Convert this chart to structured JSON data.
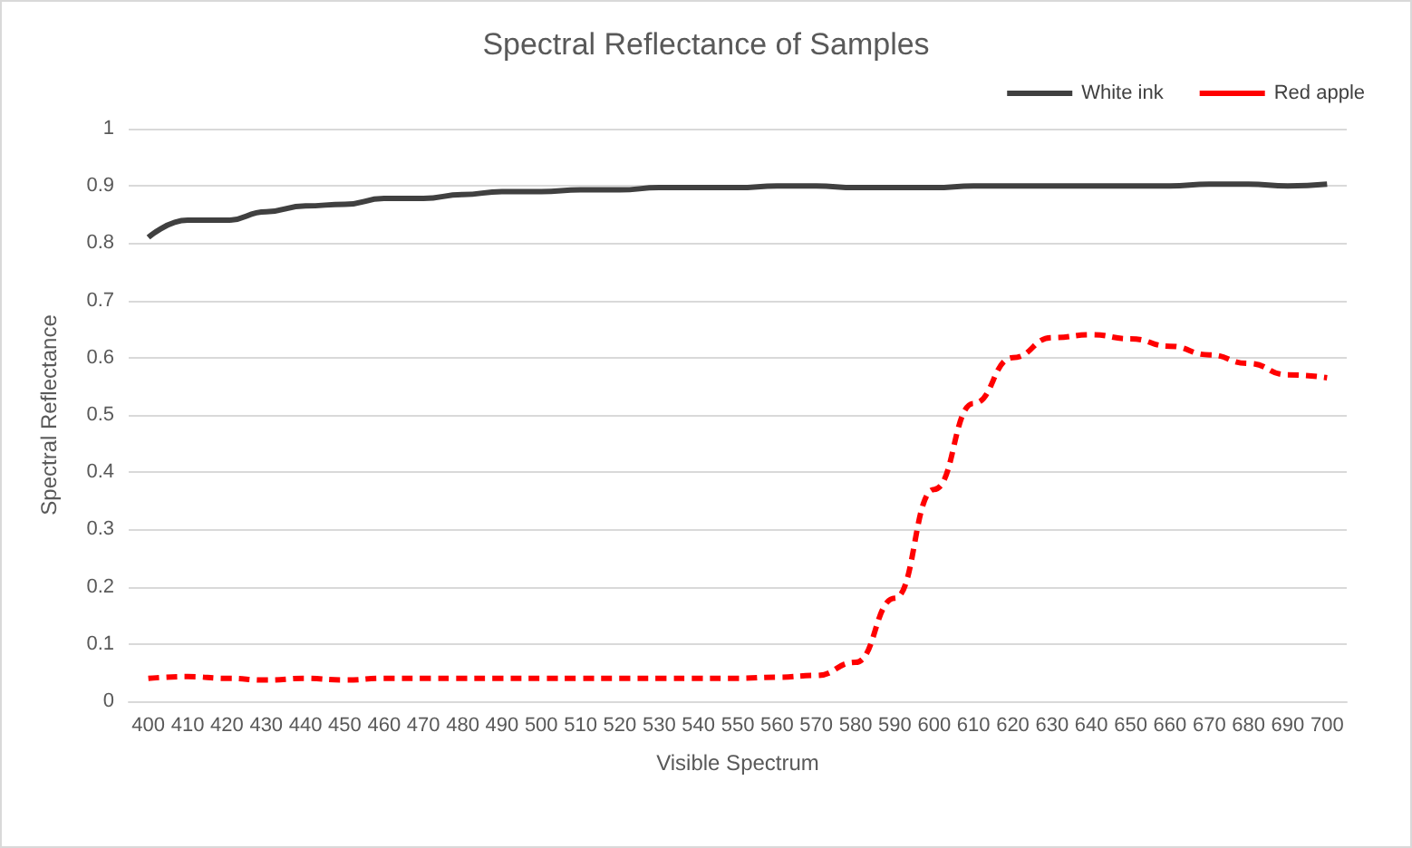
{
  "chart_data": {
    "type": "line",
    "title": "Spectral Reflectance of Samples",
    "xlabel": "Visible Spectrum",
    "ylabel": "Spectral Reflectance",
    "categories": [
      "400",
      "410",
      "420",
      "430",
      "440",
      "450",
      "460",
      "470",
      "480",
      "490",
      "500",
      "510",
      "520",
      "530",
      "540",
      "550",
      "560",
      "570",
      "580",
      "590",
      "600",
      "610",
      "620",
      "630",
      "640",
      "650",
      "660",
      "670",
      "680",
      "690",
      "700"
    ],
    "series": [
      {
        "name": "White ink",
        "color": "#404040",
        "line_style": "solid",
        "values": [
          0.81,
          0.84,
          0.84,
          0.855,
          0.865,
          0.868,
          0.878,
          0.878,
          0.885,
          0.89,
          0.89,
          0.893,
          0.893,
          0.897,
          0.897,
          0.897,
          0.9,
          0.9,
          0.897,
          0.897,
          0.897,
          0.9,
          0.9,
          0.9,
          0.9,
          0.9,
          0.9,
          0.903,
          0.903,
          0.9,
          0.903
        ]
      },
      {
        "name": "Red apple",
        "color": "#ff0000",
        "line_style": "dashed",
        "values": [
          0.04,
          0.043,
          0.04,
          0.037,
          0.04,
          0.037,
          0.04,
          0.04,
          0.04,
          0.04,
          0.04,
          0.04,
          0.04,
          0.04,
          0.04,
          0.04,
          0.042,
          0.045,
          0.068,
          0.18,
          0.37,
          0.52,
          0.6,
          0.635,
          0.64,
          0.633,
          0.62,
          0.605,
          0.59,
          0.57,
          0.565
        ]
      }
    ],
    "ylim": [
      0,
      1
    ],
    "yticks": [
      0,
      0.1,
      0.2,
      0.3,
      0.4,
      0.5,
      0.6,
      0.7,
      0.8,
      0.9,
      1
    ],
    "grid": "y",
    "legend": "top right",
    "marker": "none"
  }
}
